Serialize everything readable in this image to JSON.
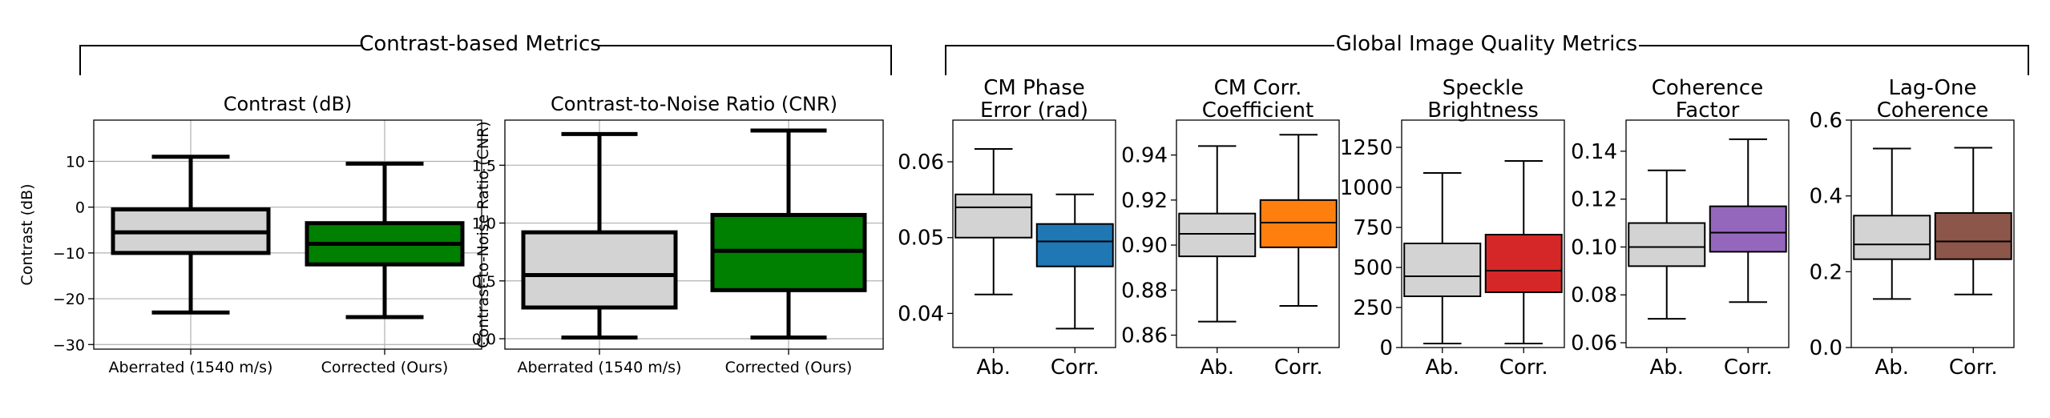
{
  "group_titles": {
    "left": "Contrast-based Metrics",
    "right": "Global Image Quality Metrics"
  },
  "chart_data": [
    {
      "type": "box",
      "title": "Contrast (dB)",
      "ylabel": "Contrast (dB)",
      "ylim": [
        -31,
        19
      ],
      "yticks": [
        -30,
        -20,
        -10,
        0,
        10
      ],
      "ytick_labels": [
        "−30",
        "−20",
        "−10",
        "0",
        "10"
      ],
      "grid": true,
      "categories": [
        "Aberrated (1540 m/s)",
        "Corrected (Ours)"
      ],
      "boxes": [
        {
          "whislo": -23,
          "q1": -10,
          "med": -5.5,
          "q3": -0.5,
          "whishi": 11,
          "color": "#d3d3d3"
        },
        {
          "whislo": -24,
          "q1": -12.5,
          "med": -8,
          "q3": -3.5,
          "whishi": 9.5,
          "color": "#008000"
        }
      ]
    },
    {
      "type": "box",
      "title": "Contrast-to-Noise Ratio (CNR)",
      "ylabel": "Contrast-to-Noise Ratio (CNR)",
      "ylim": [
        -0.09,
        1.89
      ],
      "yticks": [
        0.0,
        0.5,
        1.0,
        1.5
      ],
      "ytick_labels": [
        "0.0",
        "0.5",
        "1.0",
        "1.5"
      ],
      "grid": true,
      "categories": [
        "Aberrated (1540 m/s)",
        "Corrected (Ours)"
      ],
      "boxes": [
        {
          "whislo": 0.01,
          "q1": 0.27,
          "med": 0.55,
          "q3": 0.92,
          "whishi": 1.77,
          "color": "#d3d3d3"
        },
        {
          "whislo": 0.01,
          "q1": 0.42,
          "med": 0.76,
          "q3": 1.07,
          "whishi": 1.8,
          "color": "#008000"
        }
      ]
    },
    {
      "type": "box",
      "title": [
        "CM Phase",
        "Error (rad)"
      ],
      "ylim": [
        0.0355,
        0.0655
      ],
      "yticks": [
        0.04,
        0.05,
        0.06
      ],
      "ytick_labels": [
        "0.04",
        "0.05",
        "0.06"
      ],
      "grid": false,
      "categories": [
        "Ab.",
        "Corr."
      ],
      "boxes": [
        {
          "whislo": 0.0425,
          "q1": 0.05,
          "med": 0.054,
          "q3": 0.0557,
          "whishi": 0.0617,
          "color": "#d3d3d3"
        },
        {
          "whislo": 0.038,
          "q1": 0.0462,
          "med": 0.0495,
          "q3": 0.0518,
          "whishi": 0.0557,
          "color": "#1f77b4"
        }
      ]
    },
    {
      "type": "box",
      "title": [
        "CM Corr.",
        "Coefficient"
      ],
      "ylim": [
        0.8545,
        0.9555
      ],
      "yticks": [
        0.86,
        0.88,
        0.9,
        0.92,
        0.94
      ],
      "ytick_labels": [
        "0.86",
        "0.88",
        "0.90",
        "0.92",
        "0.94"
      ],
      "grid": false,
      "categories": [
        "Ab.",
        "Corr."
      ],
      "boxes": [
        {
          "whislo": 0.866,
          "q1": 0.895,
          "med": 0.905,
          "q3": 0.914,
          "whishi": 0.944,
          "color": "#d3d3d3"
        },
        {
          "whislo": 0.873,
          "q1": 0.899,
          "med": 0.91,
          "q3": 0.92,
          "whishi": 0.949,
          "color": "#ff7f0e"
        }
      ]
    },
    {
      "type": "box",
      "title": [
        "Speckle",
        "Brightness"
      ],
      "ylim": [
        0,
        1420
      ],
      "yticks": [
        0,
        250,
        500,
        750,
        1000,
        1250
      ],
      "ytick_labels": [
        "0",
        "250",
        "500",
        "750",
        "1000",
        "1250"
      ],
      "grid": false,
      "categories": [
        "Ab.",
        "Corr."
      ],
      "boxes": [
        {
          "whislo": 25,
          "q1": 320,
          "med": 445,
          "q3": 650,
          "whishi": 1090,
          "color": "#d3d3d3"
        },
        {
          "whislo": 25,
          "q1": 345,
          "med": 480,
          "q3": 705,
          "whishi": 1165,
          "color": "#d62728"
        }
      ]
    },
    {
      "type": "box",
      "title": [
        "Coherence",
        "Factor"
      ],
      "ylim": [
        0.058,
        0.153
      ],
      "yticks": [
        0.06,
        0.08,
        0.1,
        0.12,
        0.14
      ],
      "ytick_labels": [
        "0.06",
        "0.08",
        "0.10",
        "0.12",
        "0.14"
      ],
      "grid": false,
      "categories": [
        "Ab.",
        "Corr."
      ],
      "boxes": [
        {
          "whislo": 0.07,
          "q1": 0.092,
          "med": 0.1,
          "q3": 0.11,
          "whishi": 0.132,
          "color": "#d3d3d3"
        },
        {
          "whislo": 0.077,
          "q1": 0.098,
          "med": 0.106,
          "q3": 0.117,
          "whishi": 0.145,
          "color": "#9467bd"
        }
      ]
    },
    {
      "type": "box",
      "title": [
        "Lag-One",
        "Coherence"
      ],
      "ylim": [
        0,
        0.6
      ],
      "yticks": [
        0.0,
        0.2,
        0.4,
        0.6
      ],
      "ytick_labels": [
        "0.0",
        "0.2",
        "0.4",
        "0.6"
      ],
      "grid": false,
      "categories": [
        "Ab.",
        "Corr."
      ],
      "boxes": [
        {
          "whislo": 0.128,
          "q1": 0.233,
          "med": 0.272,
          "q3": 0.348,
          "whishi": 0.525,
          "color": "#d3d3d3"
        },
        {
          "whislo": 0.14,
          "q1": 0.233,
          "med": 0.28,
          "q3": 0.355,
          "whishi": 0.527,
          "color": "#8c564b"
        }
      ]
    }
  ]
}
